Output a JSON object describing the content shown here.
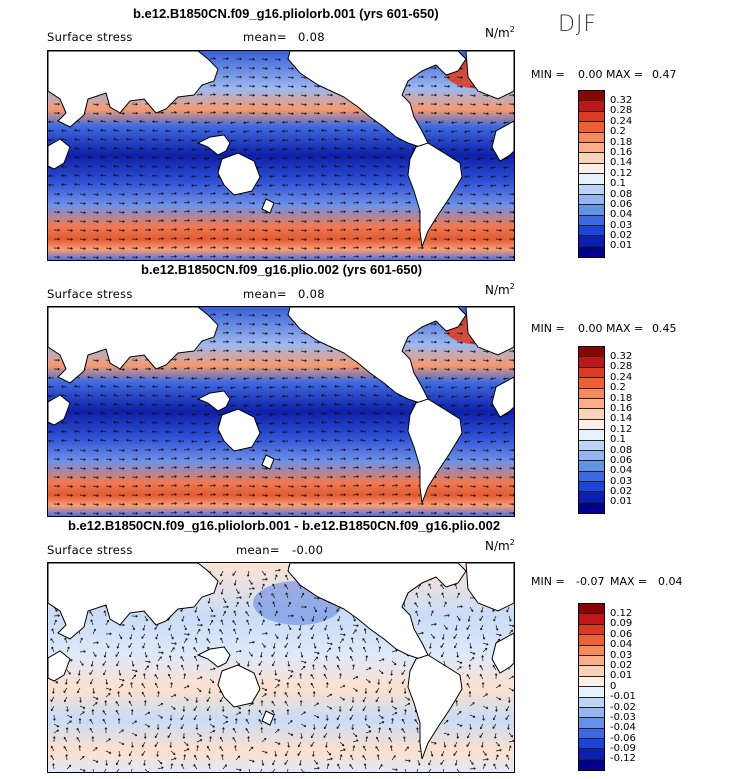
{
  "season": "DJF",
  "panels": [
    {
      "title": "b.e12.B1850CN.f09_g16.pliolorb.001 (yrs 601-650)",
      "variable": "Surface stress",
      "mean_label": "mean=",
      "mean_value": "0.08",
      "units": "N/m",
      "units_exp": "2",
      "min_label": "MIN =",
      "min_value": "0.00",
      "max_label": "MAX =",
      "max_value": "0.47",
      "levels": [
        "0.32",
        "0.28",
        "0.24",
        "0.2",
        "0.18",
        "0.16",
        "0.14",
        "0.12",
        "0.1",
        "0.08",
        "0.06",
        "0.04",
        "0.03",
        "0.02",
        "0.01"
      ],
      "colors": [
        "#8b0000",
        "#c0151b",
        "#dc3a1f",
        "#ee6134",
        "#f78a5c",
        "#fcae88",
        "#fdd3b8",
        "#fff0e6",
        "#e6f0ff",
        "#bcd5f6",
        "#93b6ef",
        "#6691ea",
        "#3d6ae3",
        "#1a45d8",
        "#0a1fb5",
        "#00008b"
      ]
    },
    {
      "title": "b.e12.B1850CN.f09_g16.plio.002 (yrs 601-650)",
      "variable": "Surface stress",
      "mean_label": "mean=",
      "mean_value": "0.08",
      "units": "N/m",
      "units_exp": "2",
      "min_label": "MIN =",
      "min_value": "0.00",
      "max_label": "MAX =",
      "max_value": "0.45",
      "levels": [
        "0.32",
        "0.28",
        "0.24",
        "0.2",
        "0.18",
        "0.16",
        "0.14",
        "0.12",
        "0.1",
        "0.08",
        "0.06",
        "0.04",
        "0.03",
        "0.02",
        "0.01"
      ],
      "colors": [
        "#8b0000",
        "#c0151b",
        "#dc3a1f",
        "#ee6134",
        "#f78a5c",
        "#fcae88",
        "#fdd3b8",
        "#fff0e6",
        "#e6f0ff",
        "#bcd5f6",
        "#93b6ef",
        "#6691ea",
        "#3d6ae3",
        "#1a45d8",
        "#0a1fb5",
        "#00008b"
      ]
    },
    {
      "title": "b.e12.B1850CN.f09_g16.pliolorb.001 - b.e12.B1850CN.f09_g16.plio.002",
      "variable": "Surface stress",
      "mean_label": "mean=",
      "mean_value": "-0.00",
      "units": "N/m",
      "units_exp": "2",
      "min_label": "MIN =",
      "min_value": "-0.07",
      "max_label": "MAX =",
      "max_value": "0.04",
      "levels": [
        "0.12",
        "0.09",
        "0.06",
        "0.04",
        "0.03",
        "0.02",
        "0.01",
        "0",
        "-0.01",
        "-0.02",
        "-0.03",
        "-0.04",
        "-0.06",
        "-0.09",
        "-0.12"
      ],
      "colors": [
        "#8b0000",
        "#c0151b",
        "#dc3a1f",
        "#ee6134",
        "#f78a5c",
        "#fcae88",
        "#fdd3b8",
        "#fff0e6",
        "#e6f0ff",
        "#bcd5f6",
        "#93b6ef",
        "#6691ea",
        "#3d6ae3",
        "#1a45d8",
        "#0a1fb5",
        "#00008b"
      ]
    }
  ]
}
